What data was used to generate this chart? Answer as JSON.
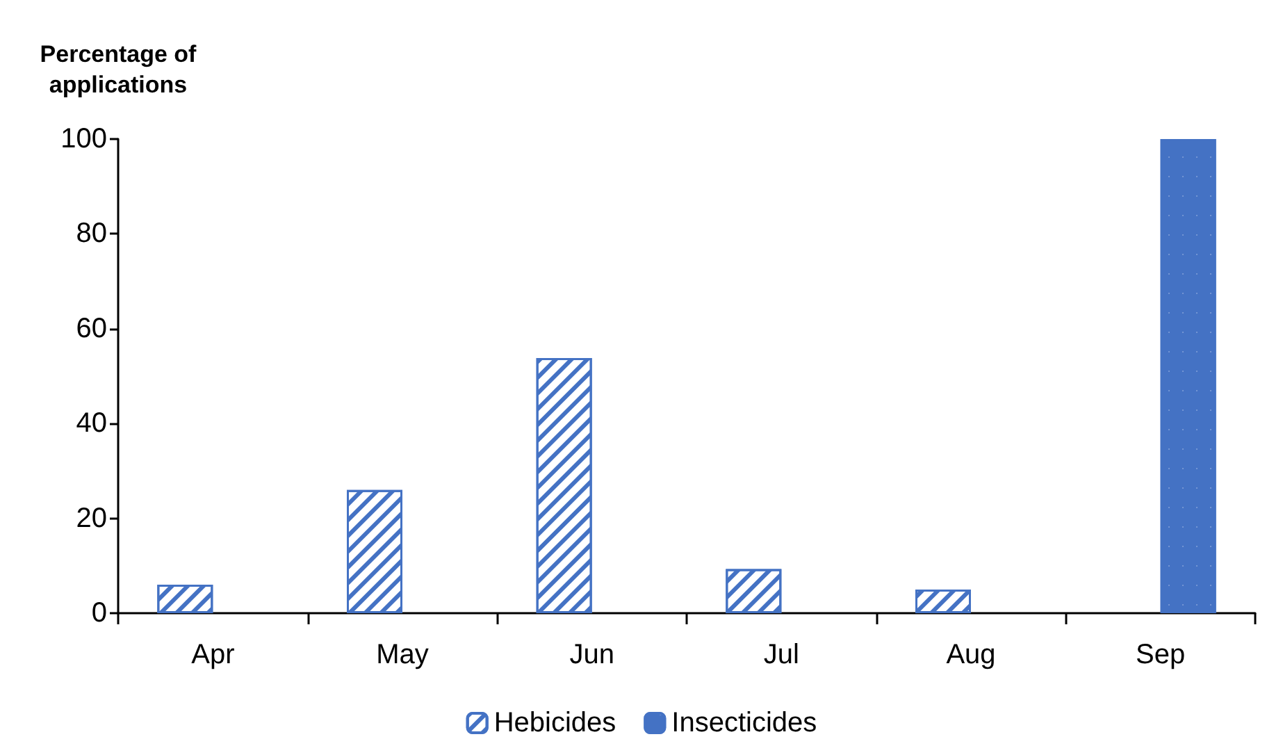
{
  "chart_data": {
    "type": "bar",
    "ylabel": "Percentage of\napplications",
    "categories": [
      "Apr",
      "May",
      "Jun",
      "Jul",
      "Aug",
      "Sep"
    ],
    "series": [
      {
        "name": "Hebicides",
        "color": "#4472c4",
        "values": [
          6,
          26,
          53.8,
          9.3,
          5,
          null
        ]
      },
      {
        "name": "Insecticides",
        "color": "#4472c4",
        "values": [
          null,
          null,
          null,
          null,
          null,
          100
        ]
      }
    ],
    "ylim": [
      0,
      100
    ],
    "yticks": [
      0,
      20,
      40,
      60,
      80,
      100
    ],
    "grid": false,
    "legend": "bottom"
  }
}
